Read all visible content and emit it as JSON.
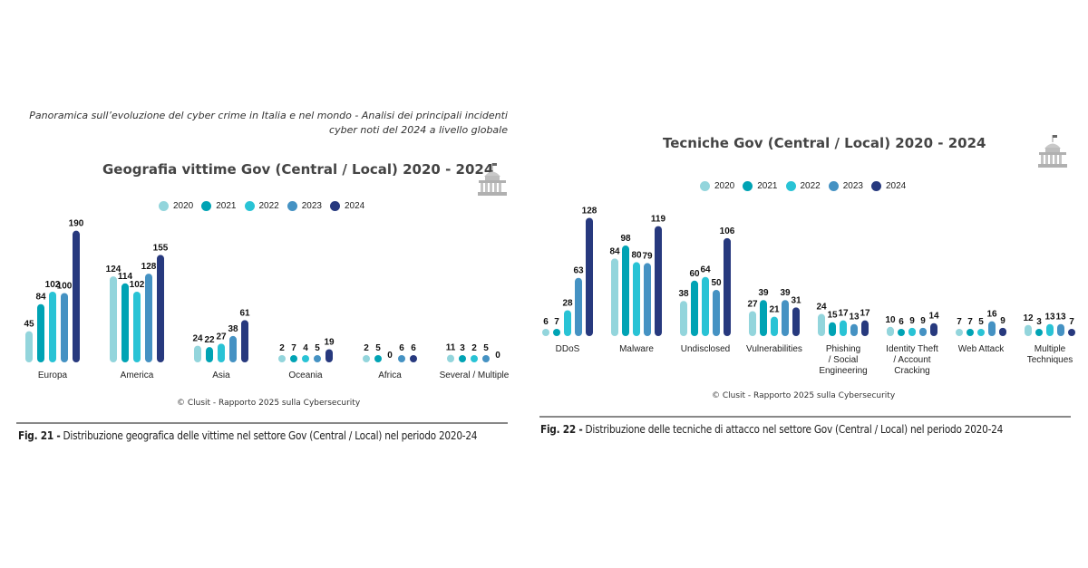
{
  "header": {
    "line1": "Panoramica sull’evoluzione del cyber crime in Italia e nel mondo - Analisi dei principali incidenti",
    "line2": "cyber noti del 2024 a livello globale"
  },
  "icons": {
    "left": "government-building-icon",
    "right": "government-building-icon"
  },
  "colors": {
    "2020": "#93d5dc",
    "2021": "#00a3b4",
    "2022": "#29c3d5",
    "2023": "#4592c3",
    "2024": "#27397e",
    "title": "#444444",
    "rule": "#888888"
  },
  "chart_data": [
    {
      "type": "bar",
      "title": "Geografia vittime Gov (Central / Local) 2020 - 2024",
      "xlabel": "",
      "ylabel": "",
      "ylim": [
        0,
        190
      ],
      "grid": false,
      "legend_position": "top-center",
      "categories": [
        "Europa",
        "America",
        "Asia",
        "Oceania",
        "Africa",
        "Several / Multiple"
      ],
      "series": [
        {
          "name": "2020",
          "values": [
            45,
            124,
            24,
            2,
            2,
            11
          ]
        },
        {
          "name": "2021",
          "values": [
            84,
            114,
            22,
            7,
            5,
            3
          ]
        },
        {
          "name": "2022",
          "values": [
            102,
            102,
            27,
            4,
            0,
            2
          ]
        },
        {
          "name": "2023",
          "values": [
            100,
            128,
            38,
            5,
            6,
            5
          ]
        },
        {
          "name": "2024",
          "values": [
            190,
            155,
            61,
            19,
            6,
            0
          ]
        }
      ],
      "credit": "© Clusit - Rapporto 2025 sulla Cybersecurity",
      "caption_label": "Fig. 21 -",
      "caption_text": " Distribuzione geografica delle vittime nel settore Gov (Central / Local) nel periodo 2020-24"
    },
    {
      "type": "bar",
      "title": "Tecniche Gov (Central / Local) 2020 - 2024",
      "xlabel": "",
      "ylabel": "",
      "ylim": [
        0,
        128
      ],
      "grid": false,
      "legend_position": "top-center",
      "categories": [
        "DDoS",
        "Malware",
        "Undisclosed",
        "Vulnerabilities",
        "Phishing / Social Engineering",
        "Identity Theft / Account Cracking",
        "Web Attack",
        "Multiple Techniques"
      ],
      "category_lines": [
        [
          "DDoS"
        ],
        [
          "Malware"
        ],
        [
          "Undisclosed"
        ],
        [
          "Vulnerabilities"
        ],
        [
          "Phishing",
          "/ Social",
          "Engineering"
        ],
        [
          "Identity Theft",
          "/ Account",
          "Cracking"
        ],
        [
          "Web Attack"
        ],
        [
          "Multiple",
          "Techniques"
        ]
      ],
      "series": [
        {
          "name": "2020",
          "values": [
            6,
            84,
            38,
            27,
            24,
            10,
            7,
            12
          ]
        },
        {
          "name": "2021",
          "values": [
            7,
            98,
            60,
            39,
            15,
            6,
            7,
            3
          ]
        },
        {
          "name": "2022",
          "values": [
            28,
            80,
            64,
            21,
            17,
            9,
            5,
            13
          ]
        },
        {
          "name": "2023",
          "values": [
            63,
            79,
            50,
            39,
            13,
            9,
            16,
            13
          ]
        },
        {
          "name": "2024",
          "values": [
            128,
            119,
            106,
            31,
            17,
            14,
            9,
            7
          ]
        }
      ],
      "credit": "© Clusit - Rapporto 2025 sulla Cybersecurity",
      "caption_label": "Fig. 22 -",
      "caption_text": " Distribuzione delle tecniche di attacco nel settore Gov (Central / Local) nel periodo 2020-24"
    }
  ]
}
